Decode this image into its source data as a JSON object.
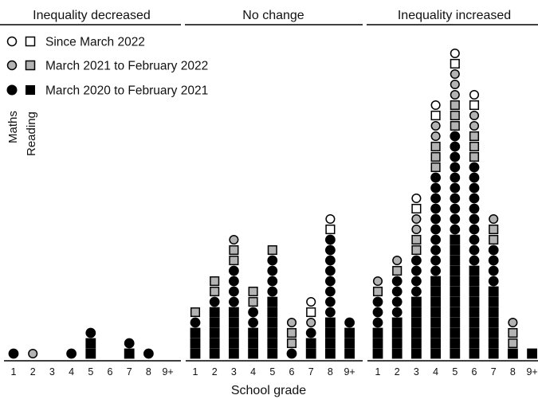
{
  "chart_data": {
    "type": "scatter",
    "subtype": "stacked-symbol-dot-plot",
    "xlabel": "School grade",
    "categories": [
      "1",
      "2",
      "3",
      "4",
      "5",
      "6",
      "7",
      "8",
      "9+"
    ],
    "panels": [
      {
        "title": "Inequality decreased",
        "stacks": [
          {
            "grade": "1",
            "symbols": [
              "m20"
            ]
          },
          {
            "grade": "2",
            "symbols": [
              "m21"
            ]
          },
          {
            "grade": "3",
            "symbols": []
          },
          {
            "grade": "4",
            "symbols": [
              "m20"
            ]
          },
          {
            "grade": "5",
            "symbols": [
              "r20",
              "r20",
              "m20"
            ]
          },
          {
            "grade": "6",
            "symbols": []
          },
          {
            "grade": "7",
            "symbols": [
              "r20",
              "m20"
            ]
          },
          {
            "grade": "8",
            "symbols": [
              "m20"
            ]
          },
          {
            "grade": "9+",
            "symbols": []
          }
        ]
      },
      {
        "title": "No change",
        "stacks": [
          {
            "grade": "1",
            "symbols": [
              "r20",
              "r20",
              "r20",
              "m20",
              "r21"
            ]
          },
          {
            "grade": "2",
            "symbols": [
              "r20",
              "r20",
              "r20",
              "r20",
              "r20",
              "m20",
              "r21",
              "r21"
            ]
          },
          {
            "grade": "3",
            "symbols": [
              "r20",
              "r20",
              "r20",
              "r20",
              "r20",
              "m20",
              "m20",
              "m20",
              "m20",
              "r21",
              "r21",
              "m21"
            ]
          },
          {
            "grade": "4",
            "symbols": [
              "r20",
              "r20",
              "r20",
              "m20",
              "m20",
              "r21",
              "r21"
            ]
          },
          {
            "grade": "5",
            "symbols": [
              "r20",
              "r20",
              "r20",
              "r20",
              "r20",
              "r20",
              "m20",
              "m20",
              "m20",
              "m20",
              "r21"
            ]
          },
          {
            "grade": "6",
            "symbols": [
              "m20",
              "r21",
              "r21",
              "m21"
            ]
          },
          {
            "grade": "7",
            "symbols": [
              "r20",
              "r20",
              "m20",
              "m21",
              "r22",
              "m22"
            ]
          },
          {
            "grade": "8",
            "symbols": [
              "r20",
              "r20",
              "r20",
              "r20",
              "m20",
              "m20",
              "m20",
              "m20",
              "m20",
              "m20",
              "m20",
              "m20",
              "r22",
              "m22"
            ]
          },
          {
            "grade": "9+",
            "symbols": [
              "r20",
              "r20",
              "r20",
              "m20"
            ]
          }
        ]
      },
      {
        "title": "Inequality increased",
        "stacks": [
          {
            "grade": "1",
            "symbols": [
              "r20",
              "r20",
              "r20",
              "m20",
              "m20",
              "m20",
              "r21",
              "m21"
            ]
          },
          {
            "grade": "2",
            "symbols": [
              "r20",
              "r20",
              "r20",
              "r20",
              "m20",
              "m20",
              "m20",
              "m20",
              "r21",
              "m21"
            ]
          },
          {
            "grade": "3",
            "symbols": [
              "r20",
              "r20",
              "r20",
              "r20",
              "r20",
              "r20",
              "m20",
              "m20",
              "m20",
              "m20",
              "r21",
              "r21",
              "m21",
              "m21",
              "r22",
              "m22"
            ]
          },
          {
            "grade": "4",
            "symbols": [
              "r20",
              "r20",
              "r20",
              "r20",
              "r20",
              "r20",
              "r20",
              "r20",
              "m20",
              "m20",
              "m20",
              "m20",
              "m20",
              "m20",
              "m20",
              "m20",
              "m20",
              "m20",
              "r21",
              "r21",
              "r21",
              "m21",
              "m21",
              "r22",
              "m22"
            ]
          },
          {
            "grade": "5",
            "symbols": [
              "r20",
              "r20",
              "r20",
              "r20",
              "r20",
              "r20",
              "r20",
              "r20",
              "r20",
              "r20",
              "r20",
              "r20",
              "m20",
              "m20",
              "m20",
              "m20",
              "m20",
              "m20",
              "m20",
              "m20",
              "m20",
              "m20",
              "r21",
              "r21",
              "r21",
              "m21",
              "m21",
              "m21",
              "r22",
              "m22"
            ]
          },
          {
            "grade": "6",
            "symbols": [
              "r20",
              "r20",
              "r20",
              "r20",
              "r20",
              "r20",
              "r20",
              "r20",
              "r20",
              "m20",
              "m20",
              "m20",
              "m20",
              "m20",
              "m20",
              "m20",
              "m20",
              "m20",
              "m20",
              "r21",
              "r21",
              "r21",
              "m21",
              "m21",
              "r22",
              "m22"
            ]
          },
          {
            "grade": "7",
            "symbols": [
              "r20",
              "r20",
              "r20",
              "r20",
              "r20",
              "r20",
              "r20",
              "m20",
              "m20",
              "m20",
              "m20",
              "r21",
              "r21",
              "m21"
            ]
          },
          {
            "grade": "8",
            "symbols": [
              "r20",
              "r21",
              "r21",
              "m21"
            ]
          },
          {
            "grade": "9+",
            "symbols": [
              "r20"
            ]
          }
        ]
      }
    ],
    "legend": {
      "placement": "top-left",
      "period_entries": [
        {
          "label": "Since March 2022",
          "fill": "#ffffff"
        },
        {
          "label": "March 2021 to February 2022",
          "fill": "#b3b3b3"
        },
        {
          "label": "March 2020 to February 2021",
          "fill": "#000000"
        }
      ],
      "subject_labels": {
        "maths": "Maths",
        "reading": "Reading"
      }
    },
    "symbol_key": {
      "m20": {
        "shape": "circle",
        "period": 2
      },
      "m21": {
        "shape": "circle",
        "period": 1
      },
      "m22": {
        "shape": "circle",
        "period": 0
      },
      "r20": {
        "shape": "square",
        "period": 2
      },
      "r21": {
        "shape": "square",
        "period": 1
      },
      "r22": {
        "shape": "square",
        "period": 0
      }
    },
    "colors": {
      "ink": "#000000",
      "grey": "#b3b3b3",
      "open": "#ffffff"
    }
  }
}
